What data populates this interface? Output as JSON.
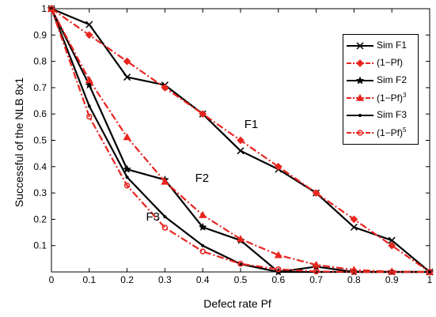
{
  "chart_data": {
    "type": "line",
    "xlabel": "Defect rate Pf",
    "ylabel": "Successful of the NLB 8x1",
    "xlim": [
      0,
      1
    ],
    "ylim": [
      0,
      1
    ],
    "x_ticks": [
      "0",
      "0.1",
      "0.2",
      "0.3",
      "0.4",
      "0.5",
      "0.6",
      "0.7",
      "0.8",
      "0.9",
      "1"
    ],
    "y_ticks": [
      "0.1",
      "0.2",
      "0.3",
      "0.4",
      "0.5",
      "0.6",
      "0.7",
      "0.8",
      "0.9",
      "1"
    ],
    "grid": false,
    "legend_position": "top-right",
    "series": [
      {
        "name": "Sim F1",
        "sup": "",
        "color": "#000000",
        "style": "solid",
        "marker": "x",
        "x": [
          0,
          0.1,
          0.2,
          0.3,
          0.4,
          0.5,
          0.6,
          0.7,
          0.8,
          0.9,
          1
        ],
        "y": [
          1,
          0.94,
          0.74,
          0.71,
          0.6,
          0.46,
          0.39,
          0.3,
          0.17,
          0.12,
          0
        ]
      },
      {
        "name": "(1−Pf)",
        "sup": "",
        "color": "#e8251f",
        "style": "dashdot",
        "marker": "diamond",
        "x": [
          0,
          0.1,
          0.2,
          0.3,
          0.4,
          0.5,
          0.6,
          0.7,
          0.8,
          0.9,
          1
        ],
        "y": [
          1,
          0.9,
          0.8,
          0.7,
          0.6,
          0.5,
          0.4,
          0.3,
          0.2,
          0.1,
          0
        ]
      },
      {
        "name": "Sim F2",
        "sup": "",
        "color": "#000000",
        "style": "solid",
        "marker": "star",
        "x": [
          0,
          0.1,
          0.2,
          0.3,
          0.4,
          0.5,
          0.6,
          0.7,
          0.8,
          0.9,
          1
        ],
        "y": [
          1,
          0.71,
          0.39,
          0.35,
          0.17,
          0.12,
          0,
          0.02,
          0,
          0,
          0
        ]
      },
      {
        "name": "(1−Pf)",
        "sup": "3",
        "color": "#e8251f",
        "style": "dashdot",
        "marker": "triangle",
        "x": [
          0,
          0.1,
          0.2,
          0.3,
          0.4,
          0.5,
          0.6,
          0.7,
          0.8,
          0.9,
          1
        ],
        "y": [
          1,
          0.729,
          0.512,
          0.343,
          0.216,
          0.125,
          0.064,
          0.027,
          0.008,
          0.001,
          0
        ]
      },
      {
        "name": "Sim F3",
        "sup": "",
        "color": "#000000",
        "style": "solid",
        "marker": "point",
        "x": [
          0,
          0.1,
          0.2,
          0.3,
          0.4,
          0.5,
          0.6,
          0.7,
          0.8,
          0.9,
          1
        ],
        "y": [
          1,
          0.63,
          0.36,
          0.21,
          0.1,
          0.03,
          0,
          0,
          0,
          0,
          0
        ]
      },
      {
        "name": "(1−Pf)",
        "sup": "5",
        "color": "#e8251f",
        "style": "dashdot",
        "marker": "circle",
        "x": [
          0,
          0.1,
          0.2,
          0.3,
          0.4,
          0.5,
          0.6,
          0.7,
          0.8,
          0.9,
          1
        ],
        "y": [
          1,
          0.59,
          0.328,
          0.168,
          0.078,
          0.031,
          0.01,
          0.002,
          0,
          0,
          0
        ]
      }
    ],
    "annotations": [
      {
        "text": "F1",
        "x": 0.51,
        "y": 0.555
      },
      {
        "text": "F2",
        "x": 0.38,
        "y": 0.35
      },
      {
        "text": "F3",
        "x": 0.25,
        "y": 0.205
      }
    ]
  }
}
